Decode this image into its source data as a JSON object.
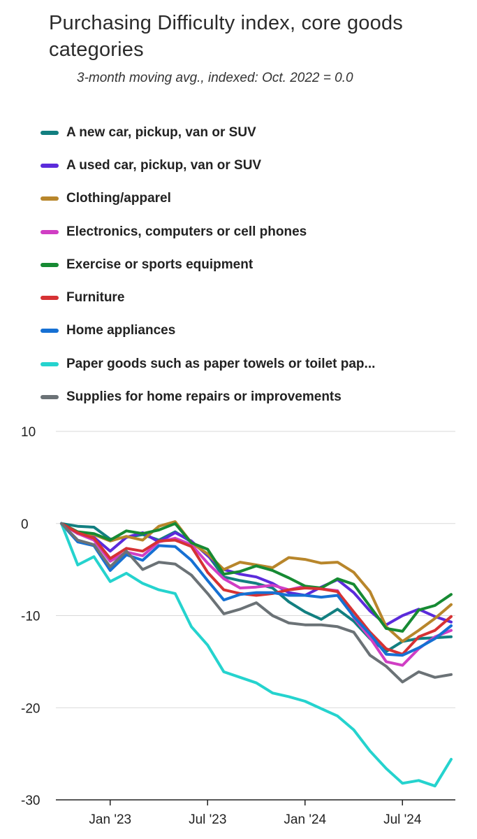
{
  "chart_data": {
    "type": "line",
    "title": "Purchasing Difficulty index, core goods categories",
    "subtitle": "3-month moving avg., indexed: Oct. 2022 = 0.0",
    "xlabel": "",
    "ylabel": "",
    "ylim": [
      -30,
      10
    ],
    "yticks": [
      10,
      0,
      -10,
      -20,
      -30
    ],
    "ytick_labels": [
      "10",
      "0",
      "-10",
      "-20",
      "-30"
    ],
    "x": [
      "2022-10",
      "2022-11",
      "2022-12",
      "2023-01",
      "2023-02",
      "2023-03",
      "2023-04",
      "2023-05",
      "2023-06",
      "2023-07",
      "2023-08",
      "2023-09",
      "2023-10",
      "2023-11",
      "2023-12",
      "2024-01",
      "2024-02",
      "2024-03",
      "2024-04",
      "2024-05",
      "2024-06",
      "2024-07",
      "2024-08",
      "2024-09",
      "2024-10"
    ],
    "xticks": [
      "2023-01",
      "2023-07",
      "2024-01",
      "2024-07"
    ],
    "xtick_labels": [
      "Jan '23",
      "Jul '23",
      "Jan '24",
      "Jul '24"
    ],
    "grid": true,
    "legend_position": "top",
    "series": [
      {
        "name": "A new car, pickup, van or SUV",
        "color": "#127f80",
        "values": [
          0,
          -0.3,
          -0.4,
          -1.7,
          -1.5,
          -1.2,
          -1.8,
          -0.9,
          -2.0,
          -3.4,
          -5.8,
          -6.2,
          -6.5,
          -7.0,
          -8.5,
          -9.6,
          -10.4,
          -9.3,
          -10.6,
          -12.5,
          -13.9,
          -12.8,
          -12.5,
          -12.4,
          -12.3
        ]
      },
      {
        "name": "A used car, pickup, van or SUV",
        "color": "#5b2bdb",
        "values": [
          0,
          -1.1,
          -1.5,
          -3.0,
          -1.5,
          -1.0,
          -2.0,
          -1.0,
          -1.9,
          -3.5,
          -5.0,
          -5.5,
          -5.8,
          -6.5,
          -7.5,
          -7.8,
          -6.9,
          -6.1,
          -7.5,
          -9.5,
          -11.0,
          -10.0,
          -9.3,
          -10.1,
          -10.7
        ]
      },
      {
        "name": "Clothing/apparel",
        "color": "#b8862b",
        "values": [
          0,
          -1.0,
          -1.2,
          -1.9,
          -1.4,
          -1.8,
          -0.3,
          0.2,
          -2.1,
          -3.3,
          -5.0,
          -4.2,
          -4.5,
          -4.8,
          -3.7,
          -3.9,
          -4.3,
          -4.2,
          -5.3,
          -7.4,
          -11.2,
          -12.8,
          -11.6,
          -10.3,
          -8.8
        ]
      },
      {
        "name": "Electronics, computers or cell phones",
        "color": "#d03ec4",
        "values": [
          0,
          -1.1,
          -1.8,
          -4.1,
          -3.1,
          -3.5,
          -2.0,
          -1.6,
          -2.3,
          -4.3,
          -6.0,
          -7.0,
          -6.9,
          -6.7,
          -7.2,
          -6.8,
          -7.1,
          -7.3,
          -10.2,
          -12.4,
          -15.0,
          -15.4,
          -13.6,
          -12.3,
          -11.6
        ]
      },
      {
        "name": "Exercise or sports equipment",
        "color": "#168a33",
        "values": [
          0,
          -0.9,
          -1.1,
          -1.8,
          -0.8,
          -1.1,
          -0.7,
          0.0,
          -2.1,
          -2.8,
          -5.5,
          -5.2,
          -4.6,
          -5.1,
          -5.9,
          -6.8,
          -7.0,
          -6.0,
          -6.6,
          -9.0,
          -11.4,
          -11.7,
          -9.4,
          -8.9,
          -7.7
        ]
      },
      {
        "name": "Furniture",
        "color": "#d63234",
        "values": [
          0,
          -1.0,
          -1.6,
          -3.8,
          -2.7,
          -3.0,
          -1.9,
          -1.8,
          -2.5,
          -5.3,
          -7.2,
          -7.6,
          -7.8,
          -7.6,
          -7.2,
          -7.0,
          -7.1,
          -7.4,
          -9.6,
          -11.8,
          -13.6,
          -14.2,
          -12.3,
          -11.6,
          -10.1
        ]
      },
      {
        "name": "Home appliances",
        "color": "#1670d3",
        "values": [
          0,
          -2.0,
          -2.4,
          -5.1,
          -3.4,
          -4.0,
          -2.4,
          -2.5,
          -4.0,
          -6.2,
          -8.3,
          -7.7,
          -7.5,
          -7.5,
          -7.8,
          -7.8,
          -8.0,
          -7.8,
          -10.1,
          -12.0,
          -14.2,
          -14.3,
          -13.5,
          -12.5,
          -11.1
        ]
      },
      {
        "name": "Paper goods such as paper towels or toilet pap...",
        "color": "#25d3ce",
        "values": [
          0,
          -4.5,
          -3.6,
          -6.3,
          -5.4,
          -6.5,
          -7.2,
          -7.6,
          -11.2,
          -13.2,
          -16.1,
          -16.7,
          -17.3,
          -18.4,
          -18.8,
          -19.3,
          -20.1,
          -20.9,
          -22.4,
          -24.7,
          -26.6,
          -28.2,
          -27.9,
          -28.5,
          -25.6
        ]
      },
      {
        "name": "Supplies for home repairs or improvements",
        "color": "#6b7276",
        "values": [
          0,
          -1.8,
          -2.3,
          -4.7,
          -3.0,
          -5.0,
          -4.2,
          -4.4,
          -5.6,
          -7.6,
          -9.8,
          -9.3,
          -8.6,
          -10.0,
          -10.8,
          -11.0,
          -11.0,
          -11.2,
          -11.8,
          -14.3,
          -15.5,
          -17.2,
          -16.1,
          -16.7,
          -16.4
        ]
      }
    ]
  }
}
